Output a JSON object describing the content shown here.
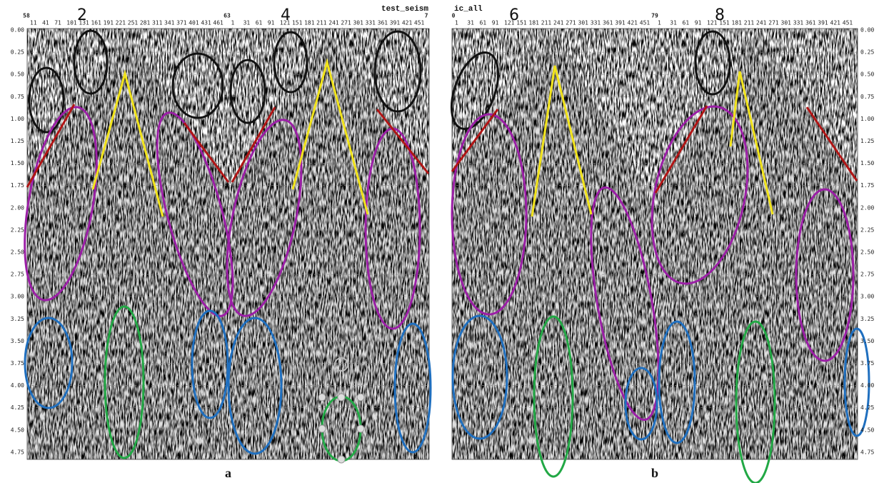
{
  "panels": [
    {
      "label": "a",
      "title": "test_seism",
      "record_numbers": [
        "58",
        "63",
        "7"
      ],
      "shot_labels": [
        "2",
        "4"
      ],
      "trace_labels": [
        [
          "11",
          "41",
          "71",
          "101",
          "131",
          "161",
          "191",
          "221",
          "251",
          "281",
          "311",
          "341",
          "371",
          "401",
          "431",
          "461"
        ],
        [
          "1",
          "31",
          "61",
          "91",
          "121",
          "151",
          "181",
          "211",
          "241",
          "271",
          "301",
          "331",
          "361",
          "391",
          "421",
          "451"
        ]
      ]
    },
    {
      "label": "b",
      "title": "ic_all",
      "record_numbers": [
        "0",
        "79"
      ],
      "shot_labels": [
        "6",
        "8"
      ],
      "trace_labels": [
        [
          "1",
          "31",
          "61",
          "91",
          "121",
          "151",
          "181",
          "211",
          "241",
          "271",
          "301",
          "331",
          "361",
          "391",
          "421",
          "451"
        ],
        [
          "1",
          "31",
          "61",
          "91",
          "121",
          "151",
          "181",
          "211",
          "241",
          "271",
          "301",
          "331",
          "361",
          "391",
          "421",
          "451"
        ]
      ]
    }
  ],
  "time_labels": [
    "0.00",
    "0.25",
    "0.50",
    "0.75",
    "1.00",
    "1.25",
    "1.50",
    "1.75",
    "2.00",
    "2.25",
    "2.50",
    "2.75",
    "3.00",
    "3.25",
    "3.50",
    "3.75",
    "4.00",
    "4.25",
    "4.50",
    "4.75"
  ]
}
